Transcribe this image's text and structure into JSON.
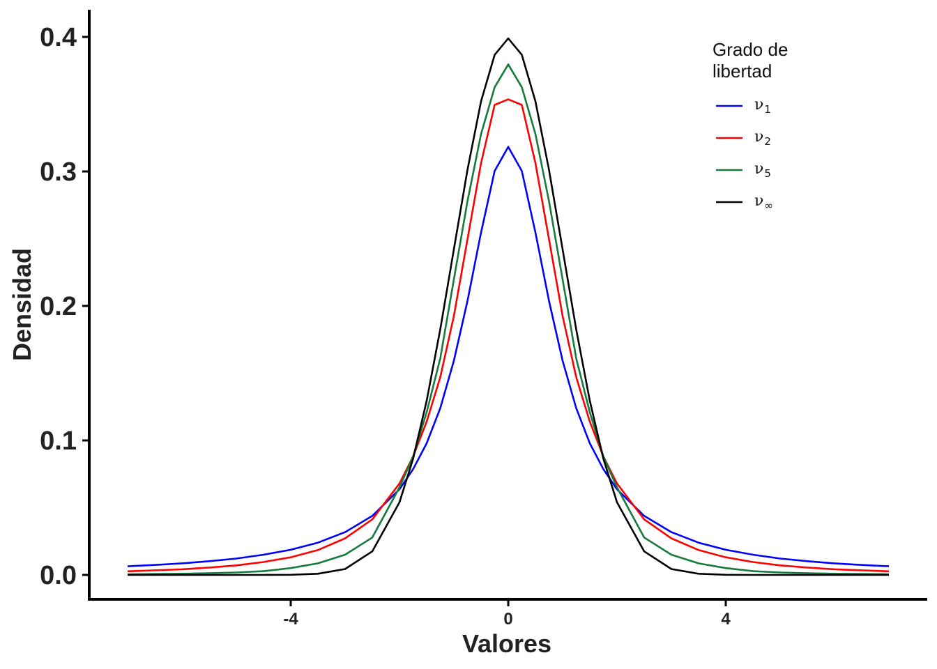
{
  "chart_data": {
    "type": "line",
    "xlabel": "Valores",
    "ylabel": "Densidad",
    "xlim": [
      -7,
      7
    ],
    "ylim": [
      0,
      0.4
    ],
    "x_ticks": [
      {
        "value": -4,
        "label": "-4"
      },
      {
        "value": 0,
        "label": "0"
      },
      {
        "value": 4,
        "label": "4"
      }
    ],
    "y_ticks": [
      {
        "value": 0,
        "label": "0.0"
      },
      {
        "value": 0.1,
        "label": "0.1"
      },
      {
        "value": 0.2,
        "label": "0.2"
      },
      {
        "value": 0.3,
        "label": "0.3"
      },
      {
        "value": 0.4,
        "label": "0.4"
      }
    ],
    "grid": false,
    "legend": {
      "title_lines": [
        "Grado de",
        "libertad"
      ],
      "placement": "top-right"
    },
    "x": [
      -7,
      -6.5,
      -6,
      -5.5,
      -5,
      -4.5,
      -4,
      -3.5,
      -3,
      -2.5,
      -2,
      -1.75,
      -1.5,
      -1.25,
      -1,
      -0.75,
      -0.5,
      -0.25,
      0,
      0.25,
      0.5,
      0.75,
      1,
      1.25,
      1.5,
      1.75,
      2,
      2.5,
      3,
      3.5,
      4,
      4.5,
      5,
      5.5,
      6,
      6.5,
      7
    ],
    "series": [
      {
        "name_base": "ν",
        "name_sub": "1",
        "color": "#0000ff",
        "values": [
          0.0064,
          0.0074,
          0.0086,
          0.0102,
          0.0122,
          0.015,
          0.0187,
          0.024,
          0.0318,
          0.0439,
          0.0637,
          0.0786,
          0.0979,
          0.124,
          0.1592,
          0.2037,
          0.2546,
          0.3003,
          0.3183,
          0.3003,
          0.2546,
          0.2037,
          0.1592,
          0.124,
          0.0979,
          0.0786,
          0.0637,
          0.0439,
          0.0318,
          0.024,
          0.0187,
          0.015,
          0.0122,
          0.0102,
          0.0086,
          0.0074,
          0.0064
        ]
      },
      {
        "name_base": "ν",
        "name_sub": "2",
        "color": "#ff0000",
        "values": [
          0.0027,
          0.0034,
          0.0042,
          0.0055,
          0.0071,
          0.0096,
          0.0131,
          0.0185,
          0.0272,
          0.0413,
          0.068,
          0.088,
          0.114,
          0.147,
          0.1925,
          0.2495,
          0.3062,
          0.3495,
          0.3536,
          0.3495,
          0.3062,
          0.2495,
          0.1925,
          0.147,
          0.114,
          0.088,
          0.068,
          0.0413,
          0.0272,
          0.0185,
          0.0131,
          0.0096,
          0.0071,
          0.0055,
          0.0042,
          0.0034,
          0.0027
        ]
      },
      {
        "name_base": "ν",
        "name_sub": "5",
        "color": "#157a3b",
        "values": [
          0.0005,
          0.0007,
          0.0009,
          0.0013,
          0.0018,
          0.0028,
          0.0051,
          0.0086,
          0.015,
          0.0278,
          0.0651,
          0.088,
          0.121,
          0.161,
          0.2197,
          0.2777,
          0.3279,
          0.3626,
          0.3796,
          0.3626,
          0.3279,
          0.2777,
          0.2197,
          0.161,
          0.121,
          0.088,
          0.0651,
          0.0278,
          0.015,
          0.0086,
          0.0051,
          0.0028,
          0.0018,
          0.0013,
          0.0009,
          0.0007,
          0.0005
        ]
      },
      {
        "name_base": "ν",
        "name_sub": "∞",
        "color": "#000000",
        "values": [
          0.0,
          0.0,
          0.0,
          0.0,
          0.0,
          0.0,
          0.0001,
          0.0009,
          0.0044,
          0.0175,
          0.054,
          0.0863,
          0.1295,
          0.1826,
          0.242,
          0.3011,
          0.3521,
          0.3867,
          0.3989,
          0.3867,
          0.3521,
          0.3011,
          0.242,
          0.1826,
          0.1295,
          0.0863,
          0.054,
          0.0175,
          0.0044,
          0.0009,
          0.0001,
          0.0,
          0.0,
          0.0,
          0.0,
          0.0,
          0.0
        ]
      }
    ]
  }
}
